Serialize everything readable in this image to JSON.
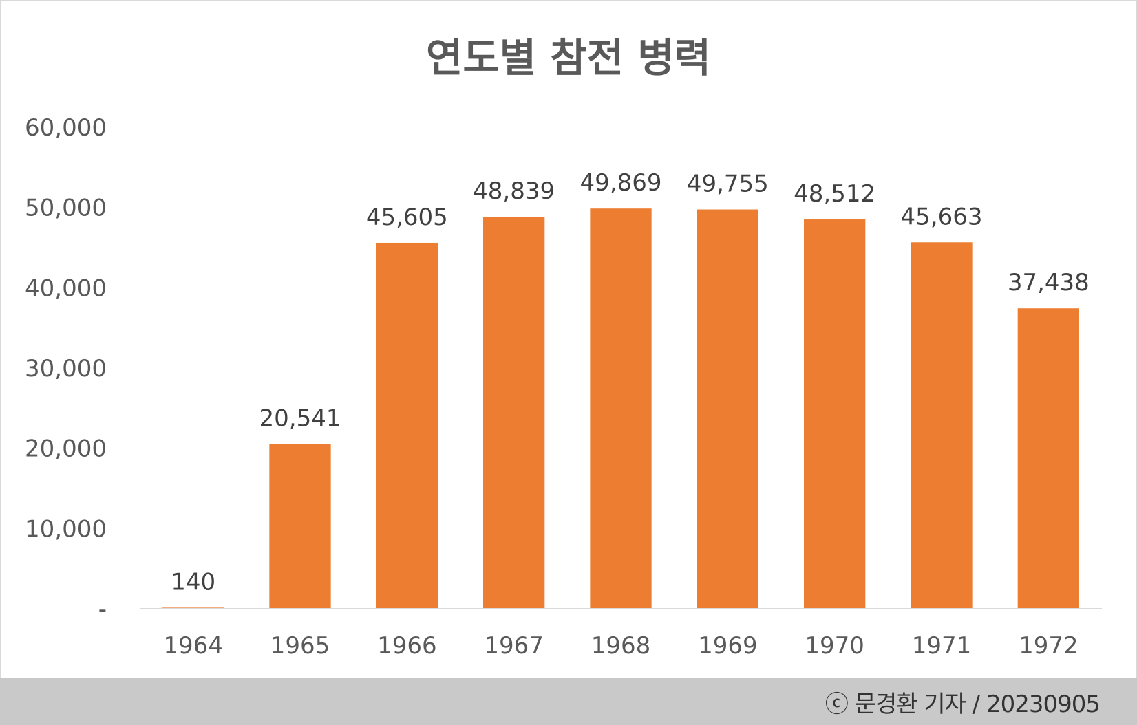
{
  "chart_data": {
    "type": "bar",
    "title": "연도별 참전 병력",
    "categories": [
      "1964",
      "1965",
      "1966",
      "1967",
      "1968",
      "1969",
      "1970",
      "1971",
      "1972"
    ],
    "values": [
      140,
      20541,
      45605,
      48839,
      49869,
      49755,
      48512,
      45663,
      37438
    ],
    "data_labels": [
      "140",
      "20,541",
      "45,605",
      "48,839",
      "49,869",
      "49,755",
      "48,512",
      "45,663",
      "37,438"
    ],
    "ylim": [
      0,
      60000
    ],
    "yticks": [
      0,
      10000,
      20000,
      30000,
      40000,
      50000,
      60000
    ],
    "ytick_labels": [
      "-",
      "10,000",
      "20,000",
      "30,000",
      "40,000",
      "50,000",
      "60,000"
    ],
    "grid": false,
    "legend": "none",
    "bar_color": "#ED7D31",
    "xlabel": "",
    "ylabel": ""
  },
  "footer": {
    "credit": "ⓒ 문경환 기자 / 20230905",
    "background": "#C9C9C9"
  }
}
